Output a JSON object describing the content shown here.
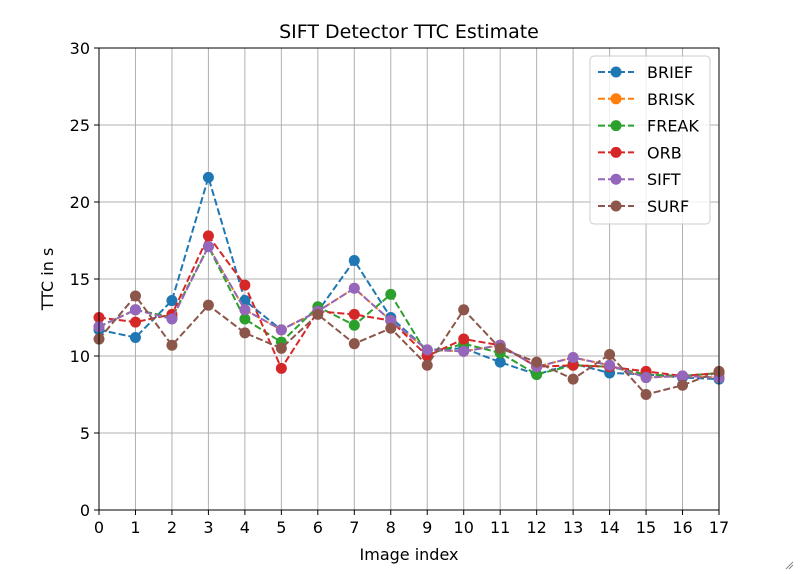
{
  "chart_data": {
    "type": "line",
    "title": "SIFT Detector TTC Estimate",
    "xlabel": "Image index",
    "ylabel": "TTC in s",
    "xlim": [
      0,
      17
    ],
    "ylim": [
      0,
      30
    ],
    "xticks": [
      0,
      1,
      2,
      3,
      4,
      5,
      6,
      7,
      8,
      9,
      10,
      11,
      12,
      13,
      14,
      15,
      16,
      17
    ],
    "yticks": [
      0,
      5,
      10,
      15,
      20,
      25,
      30
    ],
    "grid": true,
    "legend_position": "top-right",
    "x": [
      0,
      1,
      2,
      3,
      4,
      5,
      6,
      7,
      8,
      9,
      10,
      11,
      12,
      13,
      14,
      15,
      16,
      17
    ],
    "series": [
      {
        "name": "BRIEF",
        "color": "#1f77b4",
        "values": [
          11.7,
          11.2,
          13.6,
          21.6,
          13.6,
          11.7,
          12.9,
          16.2,
          12.5,
          10.4,
          10.5,
          9.6,
          8.8,
          9.5,
          8.9,
          8.8,
          8.6,
          8.5
        ]
      },
      {
        "name": "BRISK",
        "color": "#ff7f0e",
        "values": [
          11.9,
          13.0,
          12.5,
          17.1,
          13.0,
          11.7,
          12.9,
          14.4,
          12.3,
          10.4,
          10.3,
          10.7,
          9.3,
          9.9,
          9.4,
          8.6,
          8.7,
          8.6
        ]
      },
      {
        "name": "FREAK",
        "color": "#2ca02c",
        "values": [
          11.9,
          13.0,
          12.5,
          17.1,
          12.4,
          10.9,
          13.2,
          12.0,
          14.0,
          10.1,
          10.8,
          10.2,
          8.8,
          9.4,
          9.3,
          8.8,
          8.7,
          8.9
        ]
      },
      {
        "name": "ORB",
        "color": "#d62728",
        "values": [
          12.5,
          12.2,
          12.7,
          17.8,
          14.6,
          9.2,
          12.9,
          12.7,
          12.3,
          10.0,
          11.1,
          10.7,
          9.3,
          9.4,
          9.3,
          9.0,
          8.7,
          8.9
        ]
      },
      {
        "name": "SIFT",
        "color": "#9467bd",
        "values": [
          11.9,
          13.0,
          12.4,
          17.1,
          13.0,
          11.7,
          12.9,
          14.4,
          12.3,
          10.4,
          10.3,
          10.7,
          9.3,
          9.9,
          9.4,
          8.6,
          8.7,
          8.6
        ]
      },
      {
        "name": "SURF",
        "color": "#8c564b",
        "values": [
          11.1,
          13.9,
          10.7,
          13.3,
          11.5,
          10.5,
          12.7,
          10.8,
          11.8,
          9.4,
          13.0,
          10.5,
          9.6,
          8.5,
          10.1,
          7.5,
          8.1,
          9.0
        ]
      }
    ]
  }
}
